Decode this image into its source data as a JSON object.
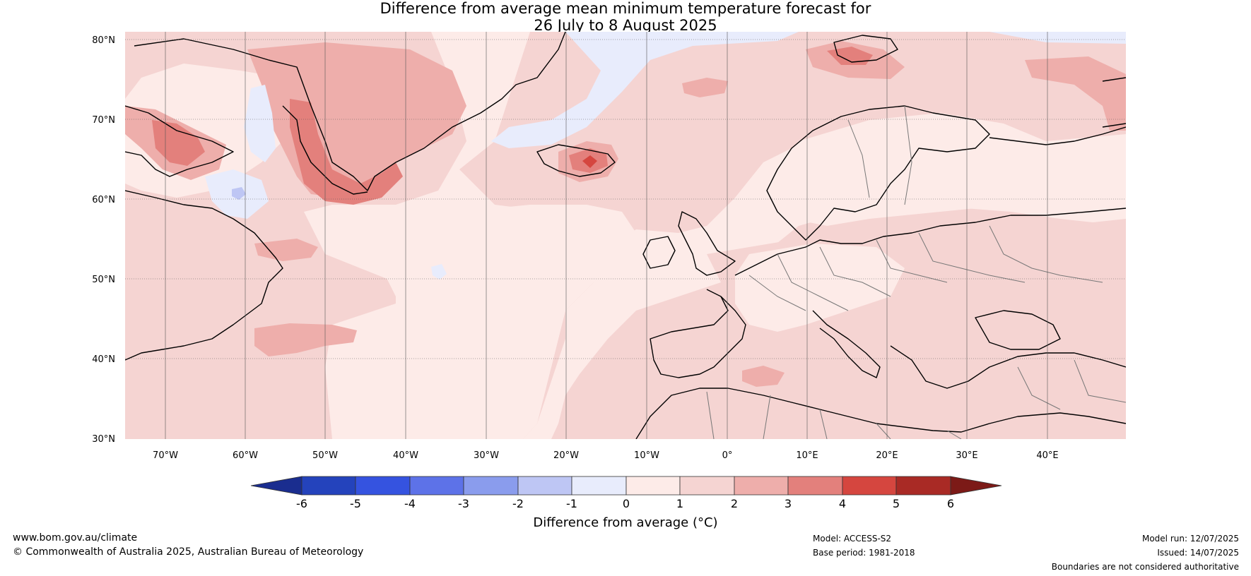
{
  "title": {
    "line1": "Difference from average mean minimum temperature forecast for",
    "line2": "26 July to 8 August 2025"
  },
  "map": {
    "lat_labels": [
      "80°N",
      "70°N",
      "60°N",
      "50°N",
      "40°N",
      "30°N"
    ],
    "lon_labels": [
      "70°W",
      "60°W",
      "50°W",
      "40°W",
      "30°W",
      "20°W",
      "10°W",
      "0°",
      "10°E",
      "20°E",
      "30°E",
      "40°E"
    ],
    "lat_range": [
      30,
      80
    ],
    "lon_range": [
      -75,
      50
    ],
    "colors": {
      "plus0_1": "#fdebe8",
      "plus1_2": "#f5d4d2",
      "plus2_3": "#eeaeab",
      "plus3_4": "#e3807c",
      "plus4_5": "#d5463f",
      "minus1_0": "#e8ecfc",
      "minus2_1": "#bec6f4"
    }
  },
  "colorbar": {
    "ticks": [
      "-6",
      "-5",
      "-4",
      "-3",
      "-2",
      "-1",
      "0",
      "1",
      "2",
      "3",
      "4",
      "5",
      "6"
    ],
    "colors": [
      "#1a2d8f",
      "#2443bc",
      "#3553e0",
      "#5d72e8",
      "#8a9ced",
      "#bec6f4",
      "#e8ecfc",
      "#fdebe8",
      "#f5d4d2",
      "#eeaeab",
      "#e3807c",
      "#d5463f",
      "#a92a25",
      "#7c1a17"
    ],
    "title": "Difference from average (°C)"
  },
  "footer": {
    "url": "www.bom.gov.au/climate",
    "copyright": "© Commonwealth of Australia 2025, Australian Bureau of Meteorology",
    "model": "Model: ACCESS-S2",
    "base_period": "Base period: 1981-2018",
    "model_run": "Model run: 12/07/2025",
    "issued": "Issued: 14/07/2025",
    "boundaries": "Boundaries are not considered authoritative"
  }
}
